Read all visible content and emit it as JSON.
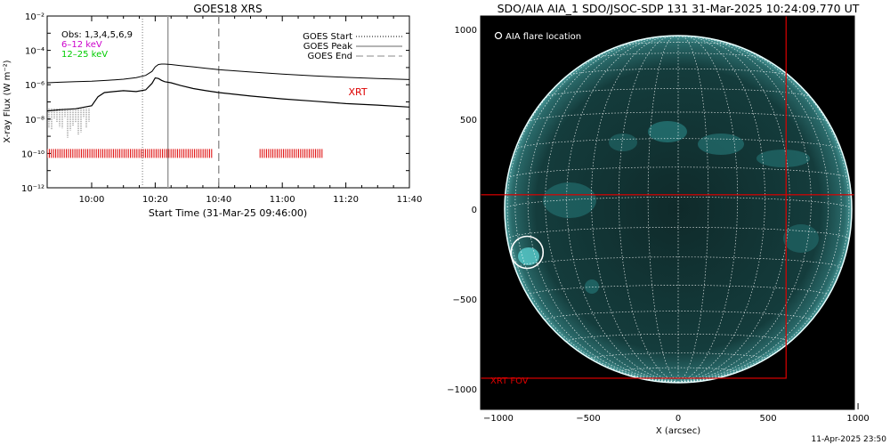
{
  "goes": {
    "title": "GOES18 XRS",
    "xlabel": "Start Time (31-Mar-25 09:46:00)",
    "ylabel": "X-ray Flux (W m⁻²)",
    "x_ticks": [
      "10:00",
      "10:20",
      "10:40",
      "11:00",
      "11:20",
      "11:40"
    ],
    "y_ticks": [
      "10⁻¹²",
      "10⁻¹⁰",
      "10⁻⁸",
      "10⁻⁶",
      "10⁻⁴",
      "10⁻²"
    ],
    "info_lines": [
      {
        "text": "Obs: 1,3,4,5,6,9",
        "color": "#000000"
      },
      {
        "text": "6–12 keV",
        "color": "#cc00cc"
      },
      {
        "text": "12–25 keV",
        "color": "#00cc00"
      }
    ],
    "legend": {
      "start": "GOES Start",
      "peak": "GOES Peak",
      "end": "GOES End"
    },
    "xrt_label": "XRT"
  },
  "chart_data": [
    {
      "type": "line",
      "title": "GOES18 XRS",
      "xlabel": "Start Time (31-Mar-25 09:46:00)",
      "ylabel": "X-ray Flux (W m⁻²)",
      "xlim": [
        "09:46",
        "11:40"
      ],
      "ylim": [
        1e-12,
        0.01
      ],
      "yscale": "log",
      "series": [
        {
          "x": [
            "09:46",
            "09:50",
            "09:55",
            "10:00",
            "10:05",
            "10:10",
            "10:14",
            "10:17",
            "10:19",
            "10:20",
            "10:21",
            "10:22",
            "10:23",
            "10:25",
            "10:28",
            "10:32",
            "10:36",
            "10:40",
            "10:50",
            "11:00",
            "11:10",
            "11:20",
            "11:30",
            "11:40"
          ],
          "values": [
            1.3e-06,
            1.4e-06,
            1.5e-06,
            1.6e-06,
            1.8e-06,
            2.1e-06,
            2.6e-06,
            3.5e-06,
            6e-06,
            1.1e-05,
            1.5e-05,
            1.6e-05,
            1.6e-05,
            1.5e-05,
            1.3e-05,
            1.1e-05,
            9e-06,
            7.5e-06,
            5.5e-06,
            4.2e-06,
            3.3e-06,
            2.7e-06,
            2.3e-06,
            2e-06
          ]
        },
        {
          "x": [
            "09:46",
            "09:50",
            "09:55",
            "10:00",
            "10:02",
            "10:04",
            "10:07",
            "10:10",
            "10:14",
            "10:17",
            "10:19",
            "10:20",
            "10:21",
            "10:22",
            "10:23",
            "10:25",
            "10:28",
            "10:32",
            "10:36",
            "10:40",
            "10:50",
            "11:00",
            "11:10",
            "11:20",
            "11:30",
            "11:40"
          ],
          "values": [
            3e-08,
            3.5e-08,
            4e-08,
            6e-08,
            2e-07,
            3.5e-07,
            4e-07,
            4.5e-07,
            4e-07,
            5e-07,
            1.2e-06,
            2.5e-06,
            2.3e-06,
            1.8e-06,
            1.5e-06,
            1.3e-06,
            9e-07,
            6e-07,
            4.5e-07,
            3.5e-07,
            2.2e-07,
            1.5e-07,
            1.1e-07,
            8e-08,
            6.5e-08,
            5e-08
          ]
        }
      ],
      "markers": {
        "goes_start": "10:16",
        "goes_peak": "10:24",
        "goes_end": "10:40"
      },
      "xrt_intervals": [
        [
          "09:46",
          "10:38"
        ],
        [
          "10:53",
          "11:13"
        ]
      ]
    }
  ],
  "aia": {
    "title": "SDO/AIA AIA_1 SDO/JSOC-SDP 131 31-Mar-2025 10:24:09.770 UT",
    "legend_label": "AIA flare location",
    "xrt_fov_label": "XRT FOV",
    "xlabel": "X (arcsec)",
    "x_ticks": [
      "−1000",
      "−500",
      "0",
      "500",
      "1000"
    ],
    "y_ticks": [
      "1000",
      "500",
      "0",
      "−500",
      "−1000"
    ],
    "solar_radius_arcsec": 965,
    "flare_location": [
      -840,
      -240
    ],
    "xrt_fov_boxes": [
      [
        -1100,
        1100,
        600,
        -940
      ],
      [
        -1100,
        80,
        1000,
        -1150
      ]
    ]
  },
  "timestamp": "11-Apr-2025 23:50"
}
